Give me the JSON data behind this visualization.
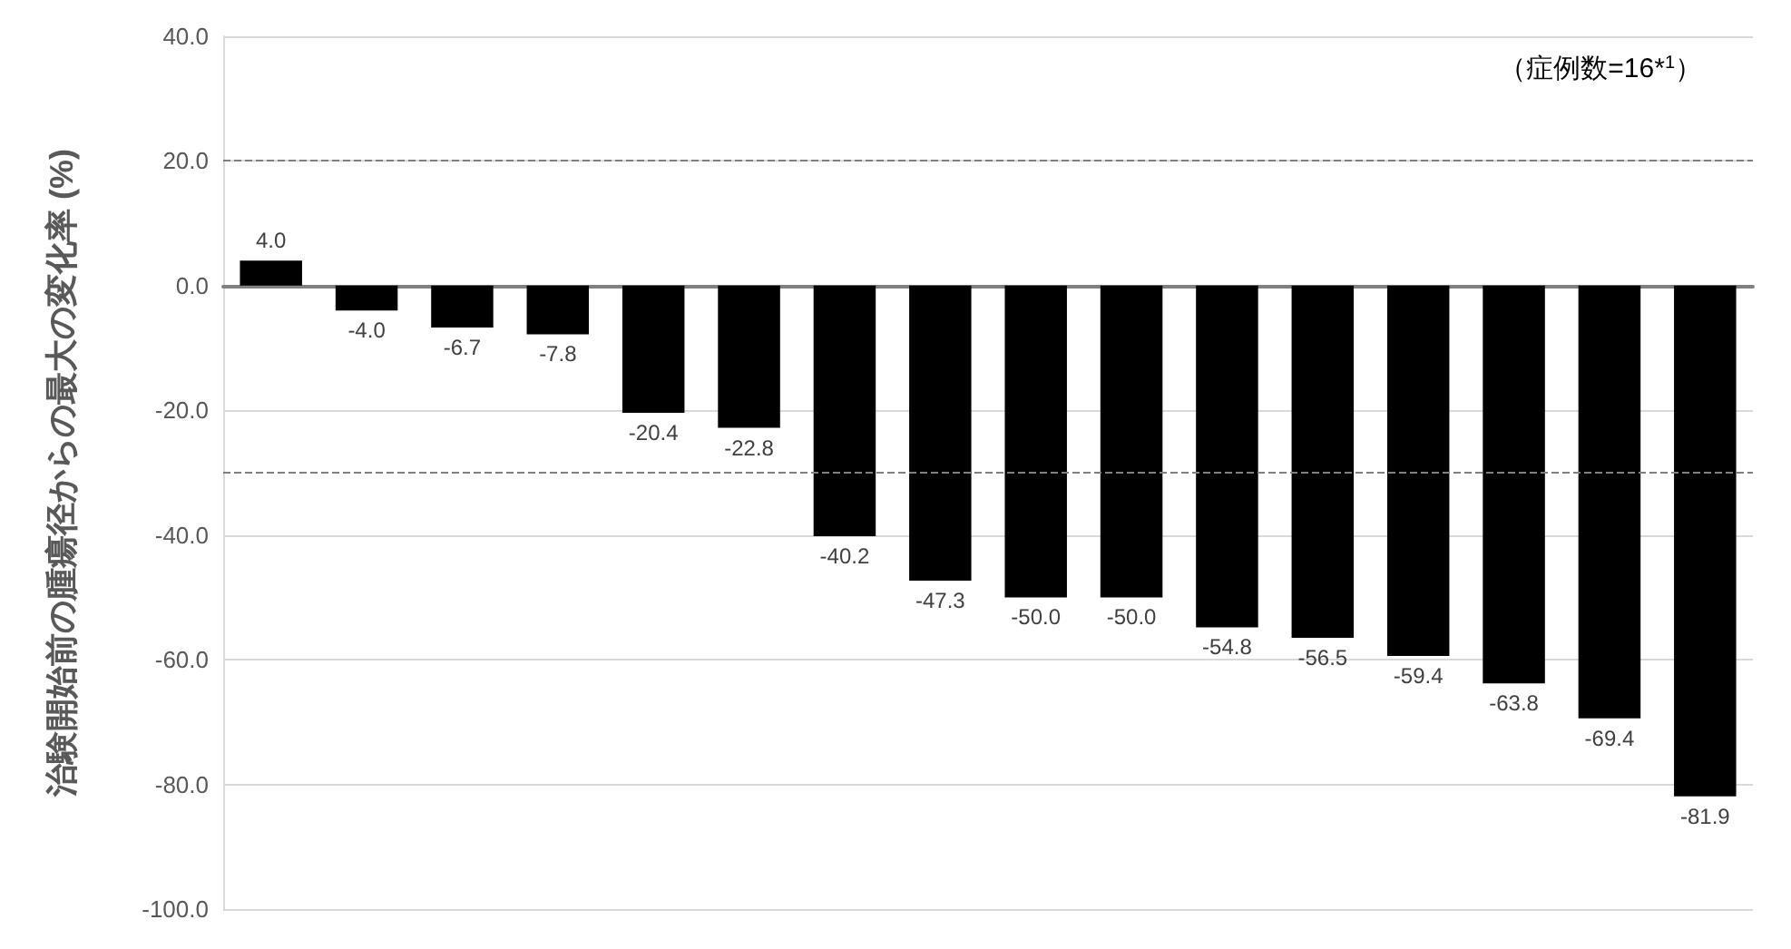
{
  "chart_data": {
    "type": "bar",
    "ylabel": "治験開始前の腫瘍径からの最大の変化率 (%)",
    "annotations": [
      "（症例数=16*$^{1}$）"
    ],
    "categories": [
      null,
      null,
      null,
      null,
      null,
      null,
      null,
      null,
      null,
      null,
      null,
      null,
      null,
      null,
      null,
      null
    ],
    "values": [
      4.0,
      -4.0,
      -6.7,
      -7.8,
      -20.4,
      -22.8,
      -40.2,
      -47.3,
      -50.0,
      -50.0,
      -54.8,
      -56.5,
      -59.4,
      -63.8,
      -69.4,
      -81.9
    ],
    "color": "#000000",
    "value_labels": [
      "4.0",
      "-4.0",
      "-6.7",
      "-7.8",
      "-20.4",
      "-22.8",
      "-40.2",
      "-47.3",
      "-50.0",
      "-50.0",
      "-54.8",
      "-56.5",
      "-59.4",
      "-63.8",
      "-69.4",
      "-81.9"
    ],
    "ylim": [
      -100,
      40
    ],
    "yticks": [
      {
        "value": -100,
        "label": "-100.0"
      },
      {
        "value": -80,
        "label": "-80.0"
      },
      {
        "value": -60,
        "label": "-60.0"
      },
      {
        "value": -40,
        "label": "-40.0"
      },
      {
        "value": -20,
        "label": "-20.0"
      },
      {
        "value": 0,
        "label": "0.0"
      },
      {
        "value": 20,
        "label": "20.0"
      },
      {
        "value": 40,
        "label": "40.0"
      }
    ],
    "ref_lines": [
      {
        "axis": "y",
        "value": 20,
        "label": null,
        "color": "#808080",
        "line_style": "dashed"
      },
      {
        "axis": "y",
        "value": -30,
        "label": null,
        "color": "#808080",
        "line_style": "dashed"
      }
    ],
    "grid": "y"
  }
}
